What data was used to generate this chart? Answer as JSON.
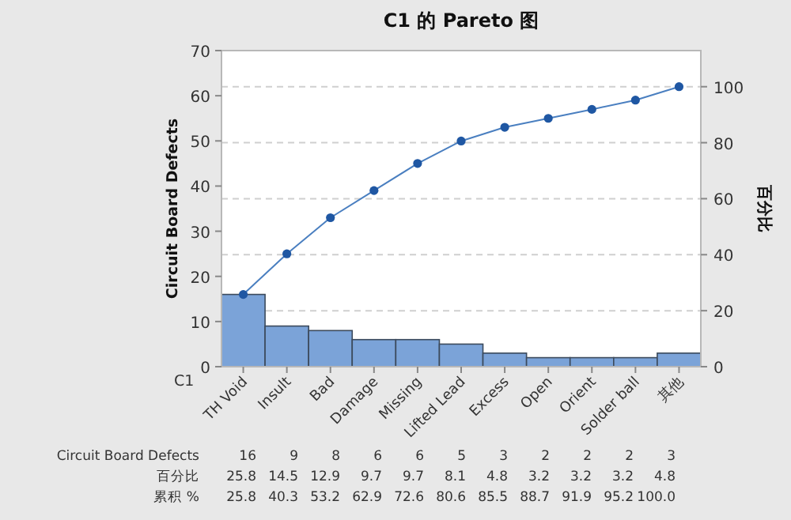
{
  "chart_data": {
    "type": "bar",
    "title": "C1 的 Pareto 图",
    "xlabel": "C1",
    "ylabel": "Circuit Board Defects",
    "y2label": "百分比",
    "categories": [
      "TH Void",
      "Insult",
      "Bad",
      "Damage",
      "Missing",
      "Lifted Lead",
      "Excess",
      "Open",
      "Orient",
      "Solder ball",
      "其他"
    ],
    "series": [
      {
        "color": "#7ba3d8",
        "values": [
          16,
          9,
          8,
          6,
          6,
          5,
          3,
          2,
          2,
          2,
          3
        ]
      },
      {
        "type": "line",
        "axis": "y2",
        "color": "#1f57a3",
        "values": [
          25.8,
          40.3,
          53.2,
          62.9,
          72.6,
          80.6,
          85.5,
          88.7,
          91.9,
          95.2,
          100.0
        ]
      }
    ],
    "annotations": [
      "Circuit Board Defects",
      "16",
      "9",
      "8",
      "6",
      "6",
      "5",
      "3",
      "2",
      "2",
      "2",
      "3",
      "百分比",
      "25.8",
      "14.5",
      "12.9",
      "9.7",
      "9.7",
      "8.1",
      "4.8",
      "3.2",
      "3.2",
      "3.2",
      "4.8",
      "累积 %",
      "25.8",
      "40.3",
      "53.2",
      "62.9",
      "72.6",
      "80.6",
      "85.5",
      "88.7",
      "91.9",
      "95.2",
      "100.0"
    ],
    "ylim": [
      0,
      70
    ],
    "yticks": [
      0,
      10,
      20,
      30,
      40,
      50,
      60,
      70
    ],
    "y2lim": [
      0,
      112.9
    ],
    "y2ticks": [
      0,
      20,
      40,
      60,
      80,
      100
    ],
    "grid": "y2",
    "marker": "circle",
    "line_style": "solid"
  }
}
